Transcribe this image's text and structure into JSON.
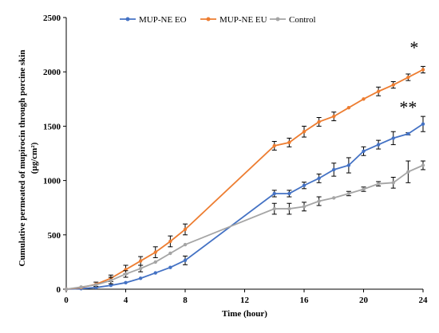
{
  "chart_data": {
    "type": "line",
    "xlabel": "Time (hour)",
    "ylabel_line1": "Cumulative permeated of mupirocin through porcine skin",
    "ylabel_line2": "(µg/cm²)",
    "xlim": [
      0,
      24
    ],
    "ylim": [
      0,
      2500
    ],
    "xticks": [
      0,
      4,
      8,
      12,
      16,
      20,
      24
    ],
    "yticks": [
      0,
      500,
      1000,
      1500,
      2000,
      2500
    ],
    "x": [
      0,
      1,
      2,
      3,
      4,
      5,
      6,
      7,
      8,
      14,
      15,
      16,
      17,
      18,
      19,
      20,
      21,
      22,
      23,
      24
    ],
    "series": [
      {
        "name": "MUP-NE EO",
        "color": "#4472C4",
        "x": [
          0,
          1,
          2,
          3,
          4,
          5,
          6,
          7,
          8,
          14,
          15,
          16,
          17,
          18,
          19,
          20,
          21,
          22,
          23,
          24
        ],
        "values": [
          0,
          5,
          15,
          35,
          60,
          100,
          150,
          200,
          265,
          880,
          880,
          955,
          1020,
          1100,
          1140,
          1270,
          1330,
          1390,
          1430,
          1520
        ],
        "errors": [
          0,
          0,
          0,
          0,
          0,
          0,
          0,
          0,
          40,
          30,
          30,
          30,
          40,
          60,
          70,
          40,
          40,
          60,
          10,
          70
        ]
      },
      {
        "name": "MUP-NE EU",
        "color": "#ED7D31",
        "x": [
          0,
          1,
          2,
          3,
          4,
          5,
          6,
          7,
          8,
          14,
          15,
          16,
          17,
          18,
          19,
          20,
          21,
          22,
          23,
          24
        ],
        "values": [
          0,
          15,
          45,
          100,
          180,
          260,
          340,
          440,
          550,
          1320,
          1350,
          1450,
          1540,
          1590,
          1670,
          1750,
          1820,
          1880,
          1950,
          2020
        ],
        "errors": [
          0,
          0,
          20,
          30,
          40,
          40,
          50,
          50,
          50,
          40,
          40,
          50,
          40,
          40,
          0,
          0,
          40,
          30,
          30,
          30
        ]
      },
      {
        "name": "Control",
        "color": "#A5A5A5",
        "x": [
          0,
          1,
          2,
          3,
          4,
          5,
          6,
          7,
          8,
          14,
          15,
          16,
          17,
          18,
          19,
          20,
          21,
          22,
          23,
          24
        ],
        "values": [
          0,
          20,
          40,
          80,
          140,
          190,
          250,
          330,
          410,
          740,
          740,
          760,
          810,
          840,
          880,
          920,
          970,
          980,
          1080,
          1140
        ],
        "errors": [
          0,
          0,
          0,
          30,
          30,
          30,
          0,
          0,
          0,
          50,
          50,
          40,
          40,
          0,
          20,
          20,
          20,
          50,
          100,
          40
        ]
      }
    ],
    "annotations": [
      {
        "text": "*",
        "x": 23.4,
        "y": 2170
      },
      {
        "text": "**",
        "x": 23.0,
        "y": 1620
      }
    ],
    "legend": "top-left",
    "grid": false
  }
}
